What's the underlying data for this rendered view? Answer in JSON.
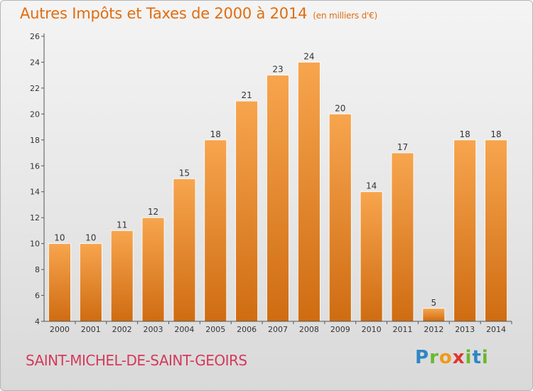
{
  "header": {
    "title": "Autres Impôts et Taxes de 2000 à 2014",
    "unit": "(en milliers d'€)"
  },
  "footer": {
    "commune": "SAINT-MICHEL-DE-SAINT-GEOIRS",
    "brand": "Proxiti"
  },
  "colors": {
    "title": "#e06d10",
    "commune": "#d43a5c",
    "bar_top": "#f7a54e",
    "bar_bottom": "#cf6c12"
  },
  "chart_data": {
    "type": "bar",
    "title": "Autres Impôts et Taxes de 2000 à 2014",
    "subtitle": "(en milliers d'€)",
    "categories": [
      "2000",
      "2001",
      "2002",
      "2003",
      "2004",
      "2005",
      "2006",
      "2007",
      "2008",
      "2009",
      "2010",
      "2011",
      "2012",
      "2013",
      "2014"
    ],
    "values": [
      10,
      10,
      11,
      12,
      15,
      18,
      21,
      23,
      24,
      20,
      14,
      17,
      5,
      18,
      18
    ],
    "ylim": [
      4,
      26
    ],
    "yticks": [
      4,
      6,
      8,
      10,
      12,
      14,
      16,
      18,
      20,
      22,
      24,
      26
    ],
    "grid": false,
    "data_labels": true
  }
}
